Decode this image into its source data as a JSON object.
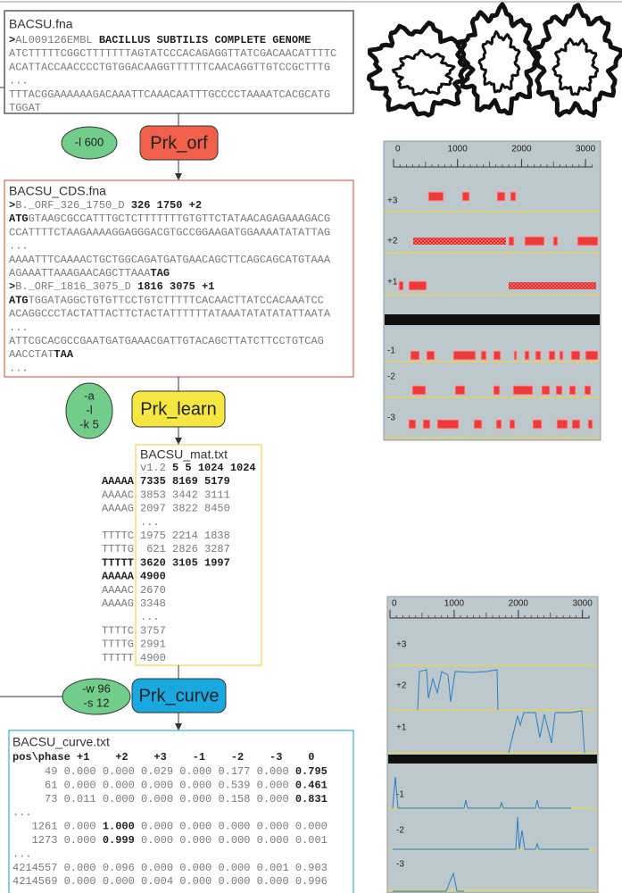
{
  "files": {
    "fna": {
      "title": "BACSU.fna",
      "lines": [
        [
          {
            "b": ">"
          },
          "AL009126EMBL ",
          {
            "b": "BACILLUS SUBTILIS COMPLETE GENOME"
          }
        ],
        "ATCTTTTTCGGCTTTTTTTAGTATCCCACAGAGGTTATCGACAACATTTTC",
        "ACATTACCAACCCCTGTGGACAAGGTTTTTTCAACAGGTTGTCCGCTTTG",
        "...",
        "TTTACGGAAAAAAGACAAATTCAAACAATTTGCCCCTAAAATCACGCATG",
        "TGGAT"
      ]
    },
    "cds": {
      "title": "BACSU_CDS.fna",
      "lines": [
        [
          {
            "b": ">"
          },
          "B._ORF_326_1750_D ",
          {
            "b": "326 1750 +2"
          }
        ],
        [
          {
            "b": "ATG"
          },
          "GTAAGCGCCATTTGCTCTTTTTTTGTGTTCTATAACAGAGAAAGACG"
        ],
        "CCATTTTCTAAGAAAAGGAGGGACGTGCCGGAAGATGGAAAATATATTAG",
        "...",
        "AAAATTTCAAAACTGCTGGCAGATGATGAACAGCTTCAGCAGCATGTAAA",
        [
          "AGAAATTAAAGAACAGCTTAAA",
          {
            "b": "TAG"
          }
        ],
        [
          {
            "b": ">"
          },
          "B._ORF_1816_3075_D ",
          {
            "b": "1816 3075 +1"
          }
        ],
        [
          {
            "b": "ATG"
          },
          "TGGATAGGCTGTGTTCCTGTCTTTTTCACAACTTATCCACAAATCC"
        ],
        "ACAGGCCCTACTATTACTTCTACTATTTTTTATAAATATATATATTAATA",
        "...",
        "ATTCGCACGCCGAATGATGAAACGATTGTACAGCTTATCTTCCTGTCAG",
        [
          "AACCTAT",
          {
            "b": "TAA"
          }
        ],
        "..."
      ]
    },
    "mat": {
      "title": "BACSU_mat.txt",
      "rows": [
        {
          "line": [
            "v1.2 ",
            {
              "b": "5 5 1024 1024"
            }
          ]
        },
        {
          "key": [
            {
              "b": "AAAAA"
            }
          ],
          "line": [
            {
              "b": "7335 8169 5179"
            }
          ]
        },
        {
          "key": "AAAAC",
          "line": "3853 3442 3111"
        },
        {
          "key": "AAAAG",
          "line": "2097 3822 8450"
        },
        {
          "line": "..."
        },
        {
          "key": "TTTTC",
          "line": "1975 2214 1838"
        },
        {
          "key": "TTTTG",
          "line": " 621 2826 3287"
        },
        {
          "key": [
            {
              "b": "TTTTT"
            }
          ],
          "line": [
            {
              "b": "3620 3105 1997"
            }
          ]
        },
        {
          "key": [
            {
              "b": "AAAAA"
            }
          ],
          "line": [
            {
              "b": "4900"
            }
          ]
        },
        {
          "key": "AAAAC",
          "line": "2670"
        },
        {
          "key": "AAAAG",
          "line": "3348"
        },
        {
          "line": "..."
        },
        {
          "key": "TTTTC",
          "line": "3757"
        },
        {
          "key": "TTTTG",
          "line": "2991"
        },
        {
          "key": "TTTTT",
          "line": "4900"
        }
      ]
    },
    "curve": {
      "title": "BACSU_curve.txt",
      "header": [
        {
          "b": "pos\\phase +1    +2    +3    -1    -2    -3    0"
        }
      ],
      "rows": [
        [
          "     49 0.000 0.000 0.029 0.000 0.177 0.000 ",
          {
            "b": "0.795"
          }
        ],
        [
          "     61 0.000 0.000 0.000 0.000 0.539 0.000 ",
          {
            "b": "0.461"
          }
        ],
        [
          "     73 0.011 0.000 0.000 0.000 0.158 0.000 ",
          {
            "b": "0.831"
          }
        ],
        "...",
        [
          "   1261 0.000 ",
          {
            "b": "1.000"
          },
          " 0.000 0.000 0.000 0.000 0.000"
        ],
        [
          "   1273 0.000 ",
          {
            "b": "0.999"
          },
          " 0.000 0.000 0.000 0.000 0.001"
        ],
        "...",
        "4214557 0.000 0.096 0.000 0.000 0.000 0.001 0.903",
        "4214569 0.000 0.000 0.004 0.000 0.000 0.000 0.996"
      ]
    }
  },
  "steps": [
    {
      "name": "Prk_orf",
      "params": [
        "-l 600"
      ]
    },
    {
      "name": "Prk_learn",
      "params": [
        "-a",
        "-l",
        "-k 5"
      ]
    },
    {
      "name": "Prk_curve",
      "params": [
        "-w 96",
        "-s 12"
      ]
    }
  ],
  "panels": [
    {
      "ticks": [
        0,
        1000,
        2000,
        3000
      ],
      "frames": [
        "+3",
        "+2",
        "+1",
        "-1",
        "-2",
        "-3"
      ]
    },
    {
      "ticks": [
        0,
        1000,
        2000,
        3000
      ],
      "frames": [
        "+3",
        "+2",
        "+1",
        "-1",
        "-2",
        "-3"
      ]
    }
  ]
}
